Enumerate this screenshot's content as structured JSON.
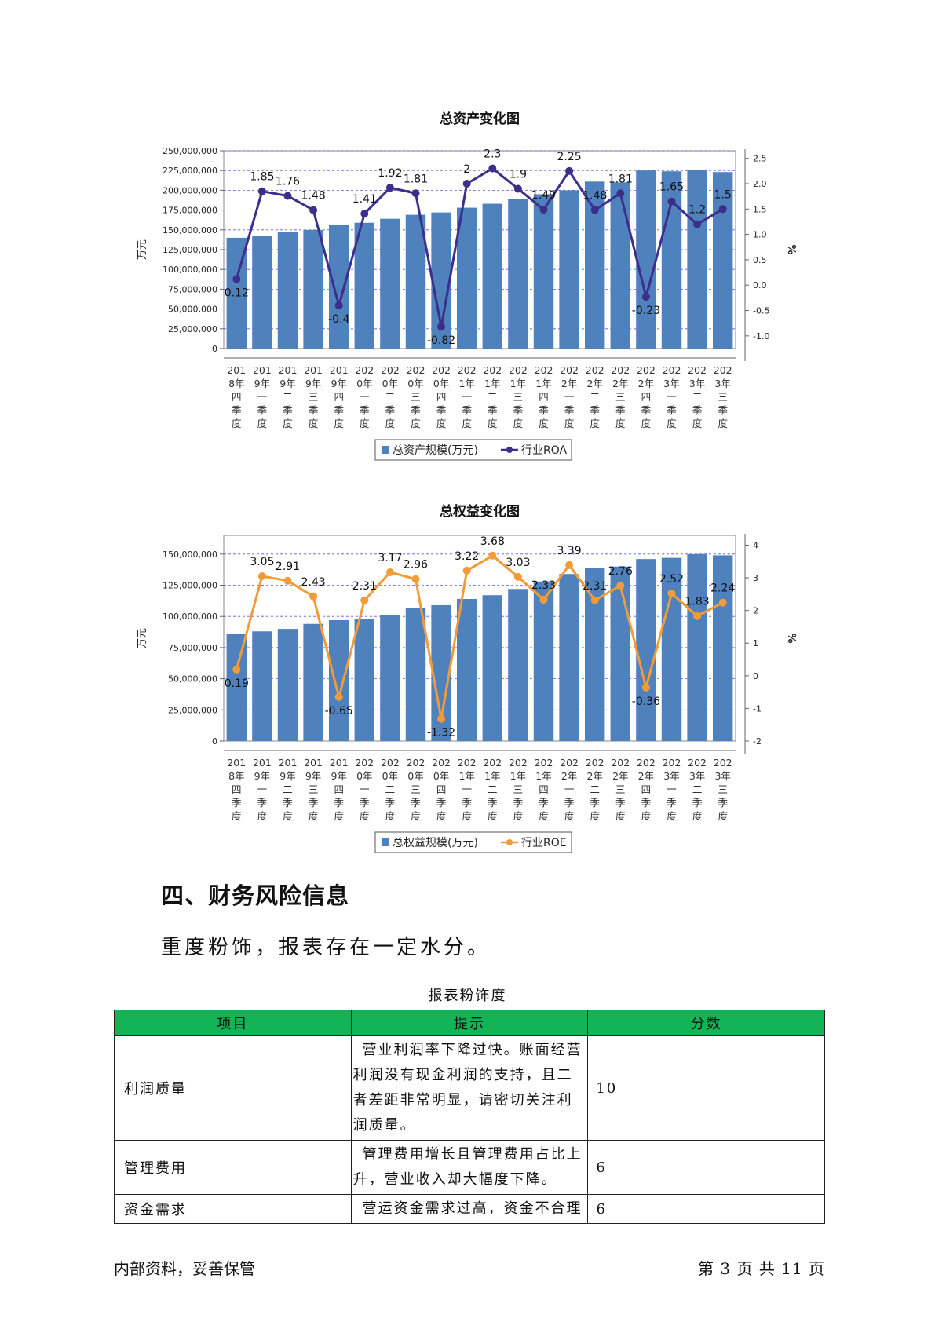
{
  "chart_data": [
    {
      "type": "bar",
      "title": "总资产变化图",
      "ylabel": "万元",
      "y2label": "%",
      "categories": [
        "2018年四季度",
        "2019年一季度",
        "2019年二季度",
        "2019年三季度",
        "2019年四季度",
        "2020年一季度",
        "2020年二季度",
        "2020年三季度",
        "2020年四季度",
        "2021年一季度",
        "2021年二季度",
        "2021年三季度",
        "2021年四季度",
        "2022年一季度",
        "2022年二季度",
        "2022年三季度",
        "2022年四季度",
        "2023年一季度",
        "2023年二季度",
        "2023年三季度"
      ],
      "category_lines": [
        [
          "201",
          "8年",
          "四",
          "季",
          "度"
        ],
        [
          "201",
          "9年",
          "一",
          "季",
          "度"
        ],
        [
          "201",
          "9年",
          "二",
          "季",
          "度"
        ],
        [
          "201",
          "9年",
          "三",
          "季",
          "度"
        ],
        [
          "201",
          "9年",
          "四",
          "季",
          "度"
        ],
        [
          "202",
          "0年",
          "一",
          "季",
          "度"
        ],
        [
          "202",
          "0年",
          "二",
          "季",
          "度"
        ],
        [
          "202",
          "0年",
          "三",
          "季",
          "度"
        ],
        [
          "202",
          "0年",
          "四",
          "季",
          "度"
        ],
        [
          "202",
          "1年",
          "一",
          "季",
          "度"
        ],
        [
          "202",
          "1年",
          "二",
          "季",
          "度"
        ],
        [
          "202",
          "1年",
          "三",
          "季",
          "度"
        ],
        [
          "202",
          "1年",
          "四",
          "季",
          "度"
        ],
        [
          "202",
          "2年",
          "一",
          "季",
          "度"
        ],
        [
          "202",
          "2年",
          "二",
          "季",
          "度"
        ],
        [
          "202",
          "2年",
          "三",
          "季",
          "度"
        ],
        [
          "202",
          "2年",
          "四",
          "季",
          "度"
        ],
        [
          "202",
          "3年",
          "一",
          "季",
          "度"
        ],
        [
          "202",
          "3年",
          "二",
          "季",
          "度"
        ],
        [
          "202",
          "3年",
          "三",
          "季",
          "度"
        ]
      ],
      "ylim": [
        0,
        250000000
      ],
      "yticks": [
        0,
        25000000,
        50000000,
        75000000,
        100000000,
        125000000,
        150000000,
        175000000,
        200000000,
        225000000,
        250000000
      ],
      "ytick_labels": [
        "0",
        "25,000,000",
        "50,000,000",
        "75,000,000",
        "100,000,000",
        "125,000,000",
        "150,000,000",
        "175,000,000",
        "200,000,000",
        "225,000,000",
        "250,000,000"
      ],
      "y2lim": [
        -1.25,
        2.65
      ],
      "y2ticks": [
        -1.0,
        -0.5,
        0.0,
        0.5,
        1.0,
        1.5,
        2.0,
        2.5
      ],
      "y2tick_labels": [
        "-1.0",
        "-0.5",
        "0.0",
        "0.5",
        "1.0",
        "1.5",
        "2.0",
        "2.5"
      ],
      "grid": true,
      "legend_position": "bottom",
      "series": [
        {
          "name": "总资产规模(万元)",
          "kind": "bar",
          "color": "#4f81bd",
          "values": [
            140000000,
            142000000,
            147000000,
            150000000,
            156000000,
            159000000,
            164000000,
            169000000,
            172000000,
            178000000,
            183000000,
            189000000,
            195000000,
            200000000,
            211000000,
            210000000,
            225000000,
            224000000,
            226000000,
            223000000
          ]
        },
        {
          "name": "行业ROA",
          "kind": "line",
          "axis": "right",
          "color": "#3d2e8c",
          "values": [
            0.12,
            1.85,
            1.76,
            1.48,
            -0.4,
            1.41,
            1.92,
            1.81,
            -0.82,
            2,
            2.3,
            1.9,
            1.49,
            2.25,
            1.48,
            1.81,
            -0.23,
            1.65,
            1.2,
            1.5
          ],
          "labels": [
            "0.12",
            "1.85",
            "1.76",
            "1.48",
            "-0.4",
            "1.41",
            "1.92",
            "1.81",
            "-0.82",
            "2",
            "2.3",
            "1.9",
            "1.49",
            "2.25",
            "1.48",
            "1.81",
            "-0.23",
            "1.65",
            "1.2",
            "1.5"
          ]
        }
      ]
    },
    {
      "type": "bar",
      "title": "总权益变化图",
      "ylabel": "万元",
      "y2label": "%",
      "categories": [
        "2018年四季度",
        "2019年一季度",
        "2019年二季度",
        "2019年三季度",
        "2019年四季度",
        "2020年一季度",
        "2020年二季度",
        "2020年三季度",
        "2020年四季度",
        "2021年一季度",
        "2021年二季度",
        "2021年三季度",
        "2021年四季度",
        "2022年一季度",
        "2022年二季度",
        "2022年三季度",
        "2022年四季度",
        "2023年一季度",
        "2023年二季度",
        "2023年三季度"
      ],
      "category_lines": [
        [
          "201",
          "8年",
          "四",
          "季",
          "度"
        ],
        [
          "201",
          "9年",
          "一",
          "季",
          "度"
        ],
        [
          "201",
          "9年",
          "二",
          "季",
          "度"
        ],
        [
          "201",
          "9年",
          "三",
          "季",
          "度"
        ],
        [
          "201",
          "9年",
          "四",
          "季",
          "度"
        ],
        [
          "202",
          "0年",
          "一",
          "季",
          "度"
        ],
        [
          "202",
          "0年",
          "二",
          "季",
          "度"
        ],
        [
          "202",
          "0年",
          "三",
          "季",
          "度"
        ],
        [
          "202",
          "0年",
          "四",
          "季",
          "度"
        ],
        [
          "202",
          "1年",
          "一",
          "季",
          "度"
        ],
        [
          "202",
          "1年",
          "二",
          "季",
          "度"
        ],
        [
          "202",
          "1年",
          "三",
          "季",
          "度"
        ],
        [
          "202",
          "1年",
          "四",
          "季",
          "度"
        ],
        [
          "202",
          "2年",
          "一",
          "季",
          "度"
        ],
        [
          "202",
          "2年",
          "二",
          "季",
          "度"
        ],
        [
          "202",
          "2年",
          "三",
          "季",
          "度"
        ],
        [
          "202",
          "2年",
          "四",
          "季",
          "度"
        ],
        [
          "202",
          "3年",
          "一",
          "季",
          "度"
        ],
        [
          "202",
          "3年",
          "二",
          "季",
          "度"
        ],
        [
          "202",
          "3年",
          "三",
          "季",
          "度"
        ]
      ],
      "ylim": [
        0,
        165000000
      ],
      "yticks": [
        0,
        25000000,
        50000000,
        75000000,
        100000000,
        125000000,
        150000000
      ],
      "ytick_labels": [
        "0",
        "25,000,000",
        "50,000,000",
        "75,000,000",
        "100,000,000",
        "125,000,000",
        "150,000,000"
      ],
      "y2lim": [
        -2.0,
        4.3
      ],
      "y2ticks": [
        -2,
        -1,
        0,
        1,
        2,
        3,
        4
      ],
      "y2tick_labels": [
        "-2",
        "-1",
        "0",
        "1",
        "2",
        "3",
        "4"
      ],
      "grid": true,
      "legend_position": "bottom",
      "series": [
        {
          "name": "总权益规模(万元)",
          "kind": "bar",
          "color": "#4f81bd",
          "values": [
            86000000,
            88000000,
            90000000,
            94000000,
            97000000,
            98000000,
            101000000,
            107000000,
            109000000,
            114000000,
            117000000,
            122000000,
            128000000,
            134000000,
            139000000,
            140000000,
            146000000,
            147000000,
            150000000,
            149000000
          ]
        },
        {
          "name": "行业ROE",
          "kind": "line",
          "axis": "right",
          "color": "#f29b38",
          "values": [
            0.19,
            3.05,
            2.91,
            2.43,
            -0.65,
            2.31,
            3.17,
            2.96,
            -1.32,
            3.22,
            3.68,
            3.03,
            2.33,
            3.39,
            2.31,
            2.76,
            -0.36,
            2.52,
            1.83,
            2.24
          ],
          "labels": [
            "0.19",
            "3.05",
            "2.91",
            "2.43",
            "-0.65",
            "2.31",
            "3.17",
            "2.96",
            "-1.32",
            "3.22",
            "3.68",
            "3.03",
            "2.33",
            "3.39",
            "2.31",
            "2.76",
            "-0.36",
            "2.52",
            "1.83",
            "2.24"
          ]
        }
      ]
    }
  ],
  "section": {
    "heading": "四、财务风险信息",
    "text": "重度粉饰，报表存在一定水分。"
  },
  "table": {
    "caption": "报表粉饰度",
    "header_color": "#13b455",
    "headers": [
      "项目",
      "提示",
      "分数"
    ],
    "rows": [
      {
        "item": "利润质量",
        "hint": "营业利润率下降过快。账面经营利润没有现金利润的支持，且二者差距非常明显，请密切关注利润质量。",
        "score": "10"
      },
      {
        "item": "管理费用",
        "hint": "管理费用增长且管理费用占比上升，营业收入却大幅度下降。",
        "score": "6"
      },
      {
        "item": "资金需求",
        "hint": "营运资金需求过高，资金不合理",
        "score": "6"
      }
    ]
  },
  "footer": {
    "left": "内部资料，妥善保管",
    "right": "第 3 页  共 11 页"
  }
}
